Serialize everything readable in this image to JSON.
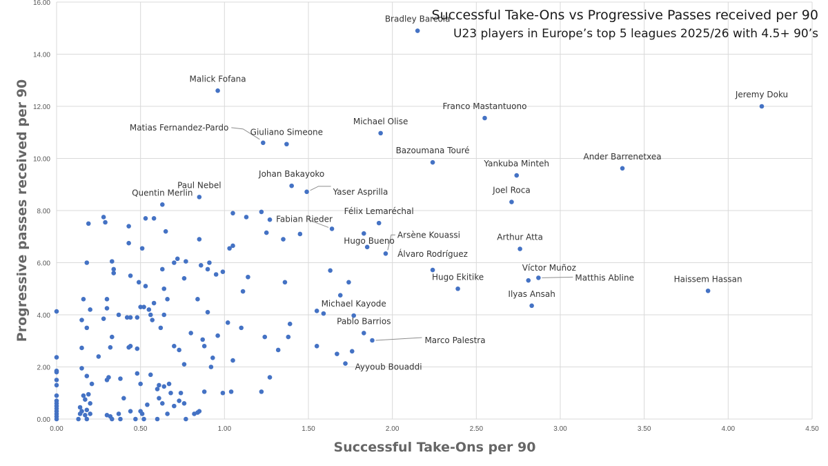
{
  "chart_data": {
    "type": "scatter",
    "title": "Successful Take-Ons vs Progressive Passes received per 90",
    "subtitle": "U23 players in Europe’s top 5 leagues 2025/26 with 4.5+ 90’s",
    "xlabel": "Successful Take-Ons per 90",
    "ylabel": "Progressive passes received per 90",
    "xlim": [
      0,
      4.5
    ],
    "ylim": [
      0,
      16
    ],
    "x_ticks": [
      "0.00",
      "0.50",
      "1.00",
      "1.50",
      "2.00",
      "2.50",
      "3.00",
      "3.50",
      "4.00",
      "4.50"
    ],
    "y_ticks": [
      "0.00",
      "2.00",
      "4.00",
      "6.00",
      "8.00",
      "10.00",
      "12.00",
      "14.00",
      "16.00"
    ],
    "grid": true,
    "marker_color": "#4472C4",
    "labeled_points": [
      {
        "name": "Bradley Barcola",
        "x": 2.15,
        "y": 14.9
      },
      {
        "name": "Malick Fofana",
        "x": 0.96,
        "y": 12.6
      },
      {
        "name": "Jeremy Doku",
        "x": 4.2,
        "y": 12.0
      },
      {
        "name": "Franco Mastantuono",
        "x": 2.55,
        "y": 11.55
      },
      {
        "name": "Michael Olise",
        "x": 1.93,
        "y": 10.97
      },
      {
        "name": "Matias Fernandez-Pardo",
        "x": 1.23,
        "y": 10.6
      },
      {
        "name": "Giuliano Simeone",
        "x": 1.37,
        "y": 10.55
      },
      {
        "name": "Bazoumana Touré",
        "x": 2.24,
        "y": 9.85
      },
      {
        "name": "Ander Barrenetxea",
        "x": 3.37,
        "y": 9.62
      },
      {
        "name": "Yankuba Minteh",
        "x": 2.74,
        "y": 9.35
      },
      {
        "name": "Johan Bakayoko",
        "x": 1.4,
        "y": 8.95
      },
      {
        "name": "Yaser Asprilla",
        "x": 1.49,
        "y": 8.72
      },
      {
        "name": "Paul Nebel",
        "x": 0.85,
        "y": 8.52
      },
      {
        "name": "Joel Roca",
        "x": 2.71,
        "y": 8.33
      },
      {
        "name": "Quentin Merlin",
        "x": 0.63,
        "y": 8.23
      },
      {
        "name": "Félix Lemaréchal",
        "x": 1.92,
        "y": 7.52
      },
      {
        "name": "Fabian Rieder",
        "x": 1.64,
        "y": 7.3
      },
      {
        "name": "Hugo Bueno",
        "x": 1.83,
        "y": 7.12
      },
      {
        "name": "Arsène Kouassi",
        "x": 1.96,
        "y": 6.35
      },
      {
        "name": "Arthur Atta",
        "x": 2.76,
        "y": 6.53
      },
      {
        "name": "Álvaro Rodríguez",
        "x": 2.24,
        "y": 5.72
      },
      {
        "name": "Víctor Muñoz",
        "x": 2.81,
        "y": 5.32
      },
      {
        "name": "Matthis Abline",
        "x": 2.87,
        "y": 5.42
      },
      {
        "name": "Hugo Ekitike",
        "x": 2.39,
        "y": 5.0
      },
      {
        "name": "Haissem Hassan",
        "x": 3.88,
        "y": 4.92
      },
      {
        "name": "Ilyas Ansah",
        "x": 2.83,
        "y": 4.35
      },
      {
        "name": "Michael Kayode",
        "x": 1.77,
        "y": 3.97
      },
      {
        "name": "Pablo Barrios",
        "x": 1.83,
        "y": 3.3
      },
      {
        "name": "Marco Palestra",
        "x": 1.88,
        "y": 3.02
      },
      {
        "name": "Ayyoub Bouaddi",
        "x": 1.72,
        "y": 2.13
      }
    ],
    "other_points": [
      [
        0.0,
        4.13
      ],
      [
        0.0,
        2.37
      ],
      [
        0.0,
        1.85
      ],
      [
        0.0,
        1.8
      ],
      [
        0.0,
        1.5
      ],
      [
        0.0,
        1.3
      ],
      [
        0.0,
        0.9
      ],
      [
        0.0,
        0.7
      ],
      [
        0.0,
        0.6
      ],
      [
        0.0,
        0.5
      ],
      [
        0.0,
        0.4
      ],
      [
        0.0,
        0.3
      ],
      [
        0.0,
        0.2
      ],
      [
        0.0,
        0.1
      ],
      [
        0.0,
        0.0
      ],
      [
        0.13,
        0.0
      ],
      [
        0.14,
        0.2
      ],
      [
        0.14,
        0.45
      ],
      [
        0.15,
        0.3
      ],
      [
        0.16,
        0.9
      ],
      [
        0.17,
        0.15
      ],
      [
        0.18,
        0.0
      ],
      [
        0.18,
        0.35
      ],
      [
        0.2,
        0.2
      ],
      [
        0.2,
        0.6
      ],
      [
        0.17,
        0.75
      ],
      [
        0.19,
        0.95
      ],
      [
        0.21,
        1.35
      ],
      [
        0.15,
        1.95
      ],
      [
        0.18,
        1.65
      ],
      [
        0.3,
        0.15
      ],
      [
        0.32,
        0.1
      ],
      [
        0.33,
        0.0
      ],
      [
        0.37,
        0.2
      ],
      [
        0.38,
        0.0
      ],
      [
        0.4,
        0.8
      ],
      [
        0.44,
        0.3
      ],
      [
        0.47,
        0.0
      ],
      [
        0.51,
        0.2
      ],
      [
        0.5,
        0.3
      ],
      [
        0.52,
        0.0
      ],
      [
        0.54,
        0.55
      ],
      [
        0.6,
        0.0
      ],
      [
        0.61,
        0.8
      ],
      [
        0.63,
        0.6
      ],
      [
        0.66,
        0.2
      ],
      [
        0.7,
        0.5
      ],
      [
        0.73,
        0.7
      ],
      [
        0.77,
        0.0
      ],
      [
        0.82,
        0.2
      ],
      [
        0.85,
        0.3
      ],
      [
        0.84,
        0.25
      ],
      [
        0.88,
        1.05
      ],
      [
        0.76,
        0.6
      ],
      [
        0.67,
        1.35
      ],
      [
        0.61,
        1.3
      ],
      [
        0.15,
        2.73
      ],
      [
        0.25,
        2.4
      ],
      [
        0.3,
        1.5
      ],
      [
        0.31,
        1.6
      ],
      [
        0.38,
        1.55
      ],
      [
        0.48,
        1.75
      ],
      [
        0.5,
        1.35
      ],
      [
        0.56,
        1.7
      ],
      [
        0.6,
        1.15
      ],
      [
        0.64,
        1.25
      ],
      [
        0.68,
        1.0
      ],
      [
        0.74,
        1.0
      ],
      [
        0.15,
        3.8
      ],
      [
        0.16,
        4.6
      ],
      [
        0.18,
        3.5
      ],
      [
        0.2,
        4.2
      ],
      [
        0.28,
        3.85
      ],
      [
        0.3,
        4.25
      ],
      [
        0.3,
        4.6
      ],
      [
        0.32,
        2.75
      ],
      [
        0.33,
        3.15
      ],
      [
        0.37,
        4.0
      ],
      [
        0.42,
        3.9
      ],
      [
        0.44,
        3.9
      ],
      [
        0.44,
        2.8
      ],
      [
        0.43,
        2.75
      ],
      [
        0.48,
        3.9
      ],
      [
        0.48,
        2.7
      ],
      [
        0.5,
        4.3
      ],
      [
        0.52,
        4.3
      ],
      [
        0.55,
        4.2
      ],
      [
        0.56,
        4.0
      ],
      [
        0.57,
        3.8
      ],
      [
        0.58,
        4.45
      ],
      [
        0.62,
        3.5
      ],
      [
        0.64,
        4.0
      ],
      [
        0.66,
        4.6
      ],
      [
        0.7,
        2.8
      ],
      [
        0.73,
        2.65
      ],
      [
        0.76,
        2.1
      ],
      [
        0.8,
        3.3
      ],
      [
        0.84,
        4.6
      ],
      [
        0.87,
        3.05
      ],
      [
        0.88,
        2.8
      ],
      [
        0.9,
        4.1
      ],
      [
        0.92,
        2.0
      ],
      [
        0.93,
        2.35
      ],
      [
        0.96,
        3.2
      ],
      [
        0.99,
        1.0
      ],
      [
        1.02,
        3.7
      ],
      [
        1.04,
        1.05
      ],
      [
        1.05,
        2.25
      ],
      [
        1.1,
        3.5
      ],
      [
        1.22,
        1.05
      ],
      [
        1.24,
        3.15
      ],
      [
        1.27,
        1.6
      ],
      [
        1.32,
        2.65
      ],
      [
        1.38,
        3.15
      ],
      [
        1.39,
        3.65
      ],
      [
        0.18,
        6.0
      ],
      [
        0.19,
        7.5
      ],
      [
        0.28,
        7.75
      ],
      [
        0.29,
        7.55
      ],
      [
        0.33,
        6.05
      ],
      [
        0.34,
        5.75
      ],
      [
        0.34,
        5.6
      ],
      [
        0.43,
        7.4
      ],
      [
        0.43,
        6.75
      ],
      [
        0.44,
        5.5
      ],
      [
        0.49,
        5.25
      ],
      [
        0.51,
        6.55
      ],
      [
        0.53,
        5.1
      ],
      [
        0.53,
        7.7
      ],
      [
        0.58,
        7.7
      ],
      [
        0.63,
        5.75
      ],
      [
        0.64,
        5.0
      ],
      [
        0.65,
        7.2
      ],
      [
        0.7,
        6.0
      ],
      [
        0.72,
        6.15
      ],
      [
        0.76,
        5.4
      ],
      [
        0.77,
        6.05
      ],
      [
        0.85,
        6.9
      ],
      [
        0.86,
        5.9
      ],
      [
        0.9,
        5.75
      ],
      [
        0.91,
        6.0
      ],
      [
        0.95,
        5.55
      ],
      [
        0.99,
        5.65
      ],
      [
        1.03,
        6.55
      ],
      [
        1.05,
        7.9
      ],
      [
        1.05,
        6.65
      ],
      [
        1.11,
        4.9
      ],
      [
        1.13,
        7.75
      ],
      [
        1.14,
        5.45
      ],
      [
        1.22,
        7.95
      ],
      [
        1.25,
        7.15
      ],
      [
        1.27,
        7.65
      ],
      [
        1.35,
        6.9
      ],
      [
        1.36,
        5.25
      ],
      [
        1.45,
        7.1
      ],
      [
        1.55,
        4.15
      ],
      [
        1.55,
        2.8
      ],
      [
        1.59,
        4.05
      ],
      [
        1.63,
        5.7
      ],
      [
        1.67,
        2.5
      ],
      [
        1.69,
        4.75
      ],
      [
        1.74,
        5.25
      ],
      [
        1.76,
        2.6
      ],
      [
        1.85,
        6.6
      ]
    ]
  }
}
